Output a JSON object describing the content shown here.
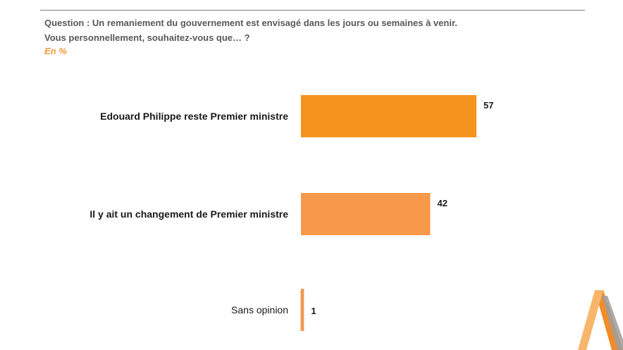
{
  "header": {
    "question_line1": "Question : Un remaniement du gouvernement est envisagé dans les jours ou semaines à venir.",
    "question_line2": "Vous personnellement, souhaitez-vous que… ?",
    "unit": "En %"
  },
  "colors": {
    "accent": "#f39c3a",
    "bar_primary": "#f5931f",
    "bar_secondary": "#f7984a",
    "axis": "#d9d9d9"
  },
  "chart_data": {
    "type": "bar",
    "orientation": "horizontal",
    "categories": [
      "Edouard Philippe reste Premier ministre",
      "Il y ait un changement de Premier ministre",
      "Sans opinion"
    ],
    "values": [
      57,
      42,
      1
    ],
    "bold_categories": [
      true,
      true,
      false
    ],
    "xlim": [
      0,
      100
    ],
    "grid": false,
    "legend": "none"
  }
}
